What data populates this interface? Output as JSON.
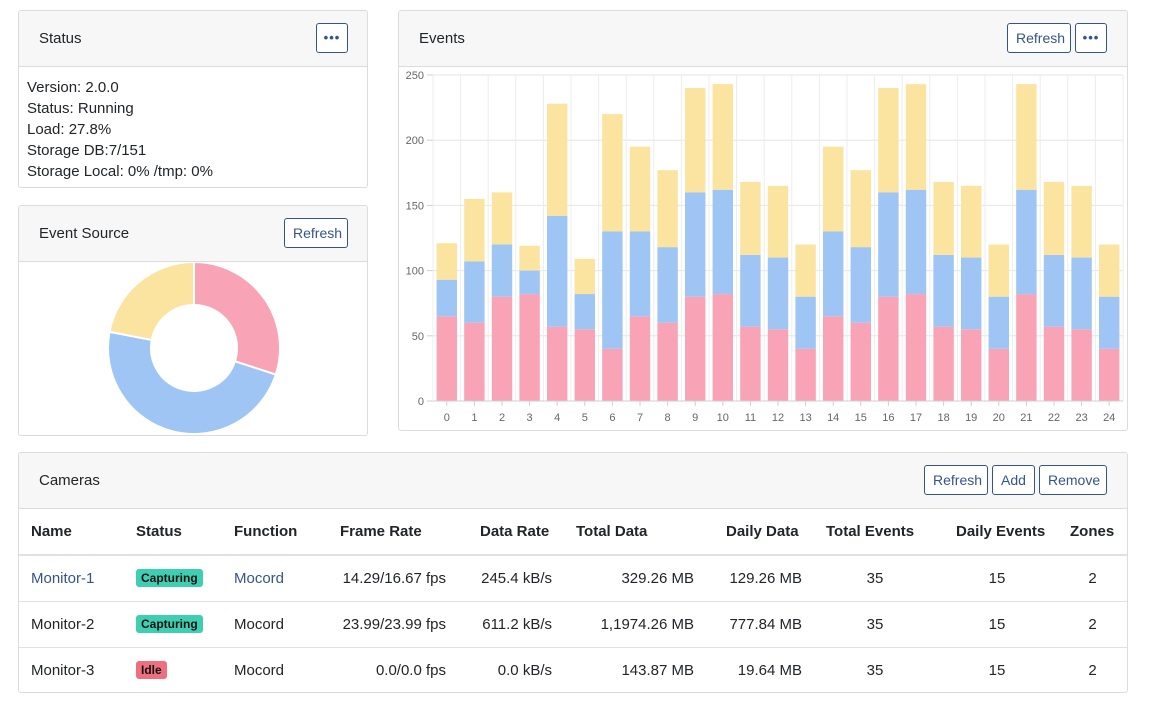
{
  "status_card": {
    "title": "Status",
    "lines": [
      "Version: 2.0.0",
      "Status: Running",
      "Load: 27.8%",
      "Storage DB:7/151",
      "Storage Local: 0% /tmp: 0%"
    ]
  },
  "event_source": {
    "title": "Event Source",
    "refresh_label": "Refresh"
  },
  "events_card": {
    "title": "Events",
    "refresh_label": "Refresh"
  },
  "more_label": "•••",
  "chart_data": [
    {
      "type": "bar",
      "stacked": true,
      "categories": [
        "0",
        "1",
        "2",
        "3",
        "4",
        "5",
        "6",
        "7",
        "8",
        "9",
        "10",
        "11",
        "12",
        "13",
        "14",
        "15",
        "16",
        "17",
        "18",
        "19",
        "20",
        "21",
        "22",
        "23",
        "24"
      ],
      "series": [
        {
          "values": [
            65,
            60,
            80,
            82,
            57,
            55,
            40,
            65,
            60,
            80,
            82,
            57,
            55,
            40,
            65,
            60,
            80,
            82,
            57,
            55,
            40,
            82,
            57,
            55,
            40
          ],
          "color": "#f9a3b6"
        },
        {
          "values": [
            28,
            47,
            40,
            18,
            85,
            27,
            90,
            65,
            58,
            80,
            80,
            55,
            55,
            40,
            65,
            58,
            80,
            80,
            55,
            55,
            40,
            80,
            55,
            55,
            40
          ],
          "color": "#9ec5f3"
        },
        {
          "values": [
            28,
            48,
            40,
            19,
            86,
            27,
            90,
            65,
            59,
            80,
            81,
            56,
            55,
            40,
            65,
            59,
            80,
            81,
            56,
            55,
            40,
            81,
            56,
            55,
            40
          ],
          "color": "#fbe3a0"
        }
      ],
      "yticks": [
        0,
        50,
        100,
        150,
        200,
        250
      ],
      "ylim": [
        0,
        250
      ],
      "grid": true
    },
    {
      "type": "pie",
      "donut": true,
      "slices": [
        {
          "value": 30,
          "color": "#f9a3b6"
        },
        {
          "value": 48,
          "color": "#9ec5f3"
        },
        {
          "value": 22,
          "color": "#fbe3a0"
        }
      ]
    }
  ],
  "cameras": {
    "title": "Cameras",
    "buttons": {
      "refresh": "Refresh",
      "add": "Add",
      "remove": "Remove"
    },
    "headers": [
      "Name",
      "Status",
      "Function",
      "Frame Rate",
      "Data Rate",
      "Total Data",
      "Daily Data",
      "Total Events",
      "Daily Events",
      "Zones"
    ],
    "rows": [
      {
        "name": "Monitor-1",
        "status": "Capturing",
        "status_color": "#3ecfb3",
        "function": "Mocord",
        "frame_rate": "14.29/16.67 fps",
        "data_rate": "245.4 kB/s",
        "total_data": "329.26 MB",
        "daily_data": "129.26 MB",
        "total_events": "35",
        "daily_events": "15",
        "zones": "2",
        "linked": true
      },
      {
        "name": "Monitor-2",
        "status": "Capturing",
        "status_color": "#3ecfb3",
        "function": "Mocord",
        "frame_rate": "23.99/23.99 fps",
        "data_rate": "611.2 kB/s",
        "total_data": "1,1974.26 MB",
        "daily_data": "777.84 MB",
        "total_events": "35",
        "daily_events": "15",
        "zones": "2",
        "linked": false
      },
      {
        "name": "Monitor-3",
        "status": "Idle",
        "status_color": "#ef6f7f",
        "function": "Mocord",
        "frame_rate": "0.0/0.0 fps",
        "data_rate": "0.0 kB/s",
        "total_data": "143.87 MB",
        "daily_data": "19.64 MB",
        "total_events": "35",
        "daily_events": "15",
        "zones": "2",
        "linked": false
      }
    ]
  }
}
